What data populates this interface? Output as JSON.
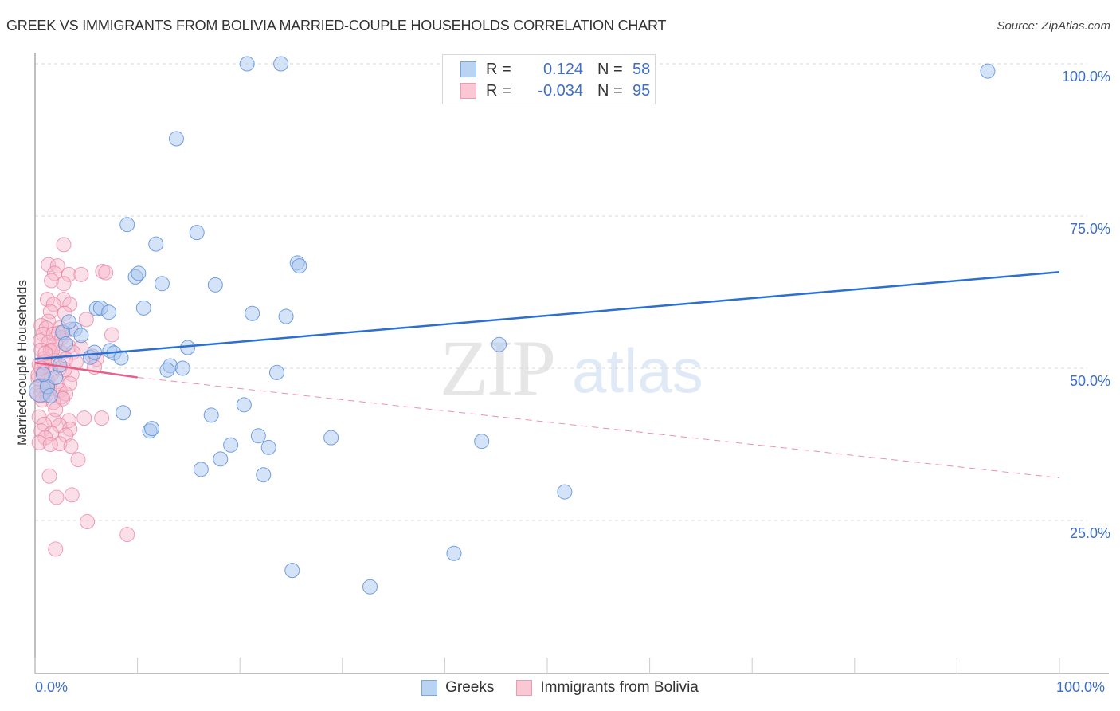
{
  "header": {
    "title": "GREEK VS IMMIGRANTS FROM BOLIVIA MARRIED-COUPLE HOUSEHOLDS CORRELATION CHART",
    "source": "Source: ZipAtlas.com"
  },
  "legend": {
    "rows": [
      {
        "r_label": "R =",
        "r_value": "0.124",
        "n_label": "N =",
        "n_value": "58",
        "color": "#a9c8f0"
      },
      {
        "r_label": "R =",
        "r_value": "-0.034",
        "n_label": "N =",
        "n_value": "95",
        "color": "#f7b9cb"
      }
    ],
    "bottom": [
      {
        "label": "Greeks",
        "color": "#a9c8f0"
      },
      {
        "label": "Immigrants from Bolivia",
        "color": "#f7b9cb"
      }
    ]
  },
  "axes": {
    "y_label": "Married-couple Households",
    "y_ticks": [
      "100.0%",
      "75.0%",
      "50.0%",
      "25.0%"
    ],
    "x_ticks": [
      "0.0%",
      "100.0%"
    ]
  },
  "watermark": {
    "part1": "ZIP",
    "part2": "atlas"
  },
  "colors": {
    "blue_fill": "#a9c8f0",
    "blue_stroke": "#5b8fdb",
    "blue_line": "#2b6fd1",
    "pink_fill": "#f7b9cb",
    "pink_stroke": "#e8809e",
    "pink_line": "#e8608a",
    "tick_text": "#3d6fc7"
  },
  "chart_data": {
    "type": "scatter",
    "title": "GREEK VS IMMIGRANTS FROM BOLIVIA MARRIED-COUPLE HOUSEHOLDS CORRELATION CHART",
    "xlabel": "",
    "ylabel": "Married-couple Households",
    "xlim": [
      0,
      100
    ],
    "ylim": [
      0,
      100
    ],
    "x_tick_labels": [
      "0.0%",
      "100.0%"
    ],
    "y_tick_labels": [
      "25.0%",
      "50.0%",
      "75.0%",
      "100.0%"
    ],
    "grid": true,
    "legend_position": "top-center and bottom",
    "series": [
      {
        "name": "Greeks",
        "R": 0.124,
        "N": 58,
        "trend": {
          "x": [
            0,
            100
          ],
          "y": [
            51.5,
            65.8
          ],
          "style": "solid"
        },
        "points": [
          [
            20.7,
            100
          ],
          [
            24,
            100
          ],
          [
            93,
            98.8
          ],
          [
            13.8,
            87.7
          ],
          [
            9,
            73.6
          ],
          [
            15.8,
            72.3
          ],
          [
            11.8,
            70.4
          ],
          [
            25.6,
            67.3
          ],
          [
            25.8,
            66.8
          ],
          [
            9.8,
            65
          ],
          [
            10.1,
            65.6
          ],
          [
            12.4,
            63.9
          ],
          [
            17.6,
            63.7
          ],
          [
            6,
            59.8
          ],
          [
            6.4,
            59.9
          ],
          [
            10.6,
            59.9
          ],
          [
            21.2,
            59
          ],
          [
            24.5,
            58.5
          ],
          [
            7.2,
            59.2
          ],
          [
            3.9,
            56.4
          ],
          [
            2.7,
            55.9
          ],
          [
            4.5,
            55.4
          ],
          [
            3.3,
            57.6
          ],
          [
            14.9,
            53.4
          ],
          [
            45.3,
            53.9
          ],
          [
            7.3,
            52.9
          ],
          [
            7.7,
            52.5
          ],
          [
            5.4,
            51.8
          ],
          [
            8.4,
            51.7
          ],
          [
            5.8,
            52.6
          ],
          [
            13.2,
            50.4
          ],
          [
            12.9,
            49.7
          ],
          [
            14.4,
            50
          ],
          [
            23.6,
            49.3
          ],
          [
            0.5,
            46.3
          ],
          [
            8.6,
            42.7
          ],
          [
            17.2,
            42.3
          ],
          [
            20.4,
            44
          ],
          [
            11.2,
            39.7
          ],
          [
            11.4,
            40.1
          ],
          [
            21.8,
            38.9
          ],
          [
            28.9,
            38.6
          ],
          [
            19.1,
            37.4
          ],
          [
            22.8,
            37
          ],
          [
            43.6,
            38
          ],
          [
            18.1,
            35.1
          ],
          [
            16.2,
            33.4
          ],
          [
            22.3,
            32.5
          ],
          [
            51.7,
            29.7
          ],
          [
            40.9,
            19.6
          ],
          [
            25.1,
            16.8
          ],
          [
            32.7,
            14.1
          ],
          [
            1.2,
            47
          ],
          [
            2,
            48.5
          ],
          [
            1.5,
            45.5
          ],
          [
            3,
            54
          ],
          [
            2.4,
            50.5
          ],
          [
            0.8,
            49
          ]
        ]
      },
      {
        "name": "Immigrants from Bolivia",
        "R": -0.034,
        "N": 95,
        "trend": {
          "x_solid": [
            0,
            10
          ],
          "y_solid": [
            50.9,
            48.5
          ],
          "x_dashed": [
            10,
            100
          ],
          "y_dashed": [
            48.5,
            32
          ]
        },
        "points": [
          [
            2.8,
            70.3
          ],
          [
            1.3,
            67
          ],
          [
            2.2,
            66.8
          ],
          [
            1.9,
            65.6
          ],
          [
            3.3,
            65.4
          ],
          [
            4.5,
            65.4
          ],
          [
            6.6,
            65.9
          ],
          [
            6.9,
            65.7
          ],
          [
            1.6,
            64.4
          ],
          [
            2.8,
            63.9
          ],
          [
            1.2,
            61.3
          ],
          [
            2.8,
            61.3
          ],
          [
            1.8,
            60.5
          ],
          [
            3.4,
            60.5
          ],
          [
            1.5,
            59.3
          ],
          [
            2.9,
            59
          ],
          [
            5,
            58
          ],
          [
            1.3,
            57.7
          ],
          [
            0.6,
            57
          ],
          [
            1.1,
            56.6
          ],
          [
            2.4,
            56.6
          ],
          [
            3.5,
            56.4
          ],
          [
            0.8,
            55.6
          ],
          [
            1.8,
            55.6
          ],
          [
            2.6,
            55
          ],
          [
            7.5,
            55.5
          ],
          [
            0.5,
            54.5
          ],
          [
            1.3,
            54.2
          ],
          [
            2,
            54
          ],
          [
            3.3,
            53.6
          ],
          [
            4.5,
            53.4
          ],
          [
            0.6,
            53
          ],
          [
            1.5,
            52.8
          ],
          [
            2.6,
            52.5
          ],
          [
            3.7,
            52.6
          ],
          [
            5.6,
            52
          ],
          [
            0.9,
            51.6
          ],
          [
            1.9,
            51.3
          ],
          [
            3,
            51.5
          ],
          [
            6,
            51.5
          ],
          [
            0.4,
            50.6
          ],
          [
            1.4,
            50.3
          ],
          [
            2.4,
            50
          ],
          [
            5.8,
            50.2
          ],
          [
            0.8,
            49.3
          ],
          [
            1.6,
            49
          ],
          [
            3.6,
            49
          ],
          [
            0.3,
            48.3
          ],
          [
            1.2,
            48
          ],
          [
            2.2,
            47.8
          ],
          [
            3.4,
            47.5
          ],
          [
            0.5,
            47.2
          ],
          [
            1.4,
            46.7
          ],
          [
            2.4,
            46.4
          ],
          [
            0.2,
            46
          ],
          [
            1.1,
            45.6
          ],
          [
            2.6,
            45.3
          ],
          [
            3,
            45.8
          ],
          [
            0.7,
            44.8
          ],
          [
            1.8,
            44.4
          ],
          [
            2.7,
            45
          ],
          [
            6.5,
            41.8
          ],
          [
            0.4,
            42
          ],
          [
            1.8,
            41.5
          ],
          [
            3.3,
            41.4
          ],
          [
            4.8,
            41.8
          ],
          [
            0.9,
            40.8
          ],
          [
            2.4,
            40.6
          ],
          [
            3.4,
            40
          ],
          [
            0.6,
            39.7
          ],
          [
            1.6,
            39.3
          ],
          [
            3,
            39
          ],
          [
            1,
            38.6
          ],
          [
            2.4,
            37.6
          ],
          [
            0.4,
            37.8
          ],
          [
            1.5,
            37.5
          ],
          [
            3.5,
            37.2
          ],
          [
            4.2,
            35
          ],
          [
            1.4,
            32.3
          ],
          [
            3.6,
            29.2
          ],
          [
            2.1,
            28.8
          ],
          [
            5.1,
            24.8
          ],
          [
            9,
            22.7
          ],
          [
            2,
            20.3
          ],
          [
            0.3,
            48.9
          ],
          [
            0.9,
            51
          ],
          [
            1.7,
            53
          ],
          [
            2.9,
            49.8
          ],
          [
            0.6,
            50
          ],
          [
            1.2,
            46.8
          ],
          [
            2,
            43.2
          ],
          [
            4,
            51
          ],
          [
            1,
            52.5
          ],
          [
            2.3,
            55.8
          ],
          [
            0.5,
            45.5
          ]
        ]
      }
    ]
  }
}
